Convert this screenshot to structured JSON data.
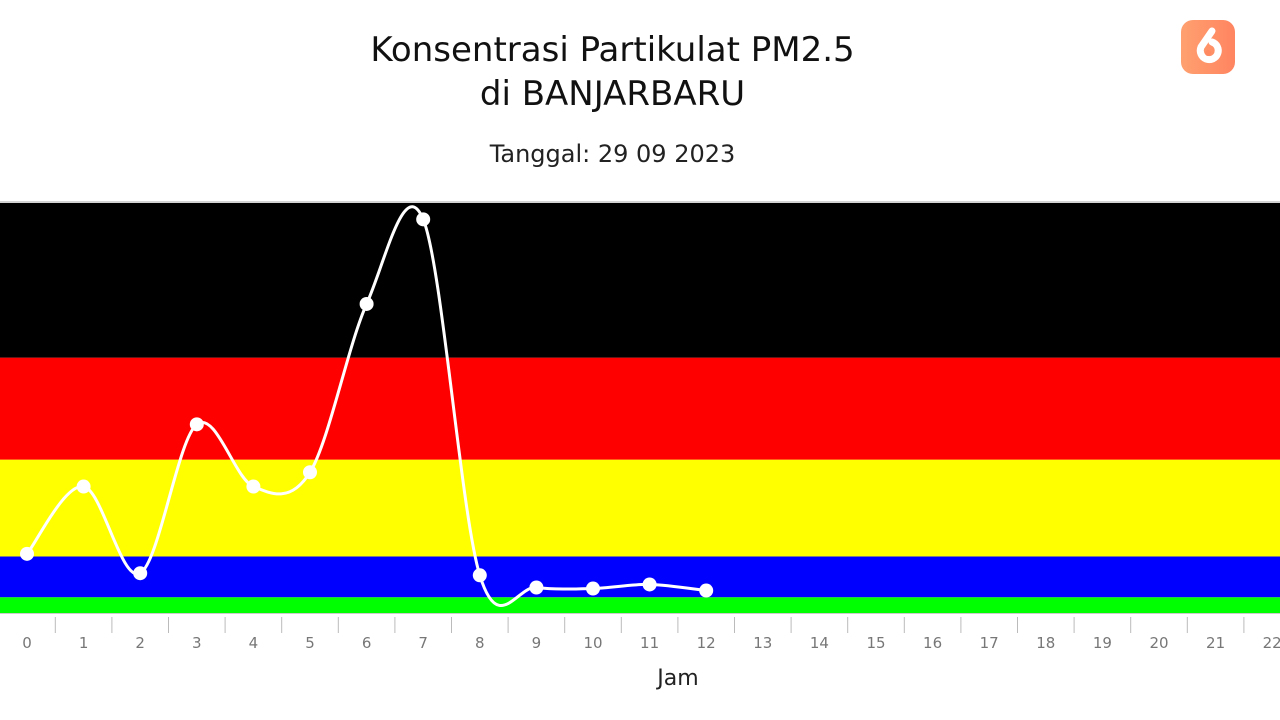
{
  "chart_data": {
    "type": "line",
    "title": "Konsentrasi Partikulat PM2.5",
    "title_line2": "di BANJARBARU",
    "subtitle": "Tanggal: 29 09 2023",
    "xlabel": "Jam",
    "ylabel": "",
    "x_ticks": [
      "0",
      "1",
      "2",
      "3",
      "4",
      "5",
      "6",
      "7",
      "8",
      "9",
      "10",
      "11",
      "12",
      "13",
      "14",
      "15",
      "16",
      "17",
      "18",
      "19",
      "20",
      "21",
      "22"
    ],
    "x": [
      0,
      1,
      2,
      3,
      4,
      5,
      6,
      7,
      8,
      9,
      10,
      11,
      12
    ],
    "values": [
      58,
      124,
      39,
      185,
      124,
      138,
      303,
      386,
      37,
      25,
      24,
      28,
      22
    ],
    "ylim": [
      0,
      402
    ],
    "y_axis_labels_visible": false,
    "grid": false,
    "line_color": "#ffffff",
    "bands": [
      {
        "from": 0,
        "to": 15.5,
        "color": "#00ff00"
      },
      {
        "from": 15.5,
        "to": 55.4,
        "color": "#0000ff"
      },
      {
        "from": 55.4,
        "to": 150.4,
        "color": "#ffff00"
      },
      {
        "from": 150.4,
        "to": 250.4,
        "color": "#ff0000"
      },
      {
        "from": 250.4,
        "to": 402,
        "color": "#000000"
      }
    ]
  },
  "logo": {
    "text": "6",
    "color": "#ff9068"
  }
}
